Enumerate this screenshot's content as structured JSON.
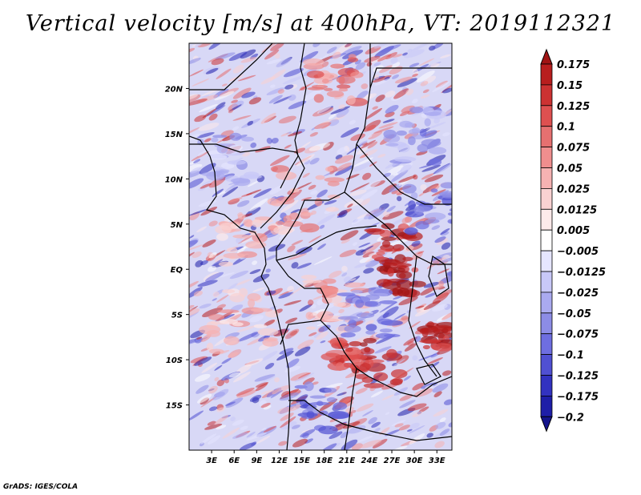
{
  "title": "Vertical velocity [m/s] at 400hPa, VT: 2019112321",
  "credit": "GrADS: IGES/COLA",
  "map": {
    "lon_range": [
      0,
      35
    ],
    "lat_range": [
      -20,
      25
    ],
    "lat_ticks": [
      {
        "value": 20,
        "label": "20N"
      },
      {
        "value": 15,
        "label": "15N"
      },
      {
        "value": 10,
        "label": "10N"
      },
      {
        "value": 5,
        "label": "5N"
      },
      {
        "value": 0,
        "label": "EQ"
      },
      {
        "value": -5,
        "label": "5S"
      },
      {
        "value": -10,
        "label": "10S"
      },
      {
        "value": -15,
        "label": "15S"
      }
    ],
    "lon_ticks": [
      {
        "value": 3,
        "label": "3E"
      },
      {
        "value": 6,
        "label": "6E"
      },
      {
        "value": 9,
        "label": "9E"
      },
      {
        "value": 12,
        "label": "12E"
      },
      {
        "value": 15,
        "label": "15E"
      },
      {
        "value": 18,
        "label": "18E"
      },
      {
        "value": 21,
        "label": "21E"
      },
      {
        "value": 24,
        "label": "24E"
      },
      {
        "value": 27,
        "label": "27E"
      },
      {
        "value": 30,
        "label": "30E"
      },
      {
        "value": 33,
        "label": "33E"
      }
    ]
  },
  "colorbar": {
    "levels": [
      "0.175",
      "0.15",
      "0.125",
      "0.1",
      "0.075",
      "0.05",
      "0.025",
      "0.0125",
      "0.005",
      "−0.005",
      "−0.0125",
      "−0.025",
      "−0.05",
      "−0.075",
      "−0.1",
      "−0.125",
      "−0.175",
      "−0.2"
    ],
    "colors": [
      "#a01414",
      "#b81e1e",
      "#cc3232",
      "#de5050",
      "#e67070",
      "#f08e8e",
      "#f6b2b2",
      "#fad2d2",
      "#fdeaea",
      "#ffffff",
      "#e6e6ff",
      "#c8c8f8",
      "#aaaaf0",
      "#8c8ce6",
      "#6e6ee0",
      "#5050d2",
      "#3232c0",
      "#1e1ea8",
      "#14148c"
    ]
  }
}
